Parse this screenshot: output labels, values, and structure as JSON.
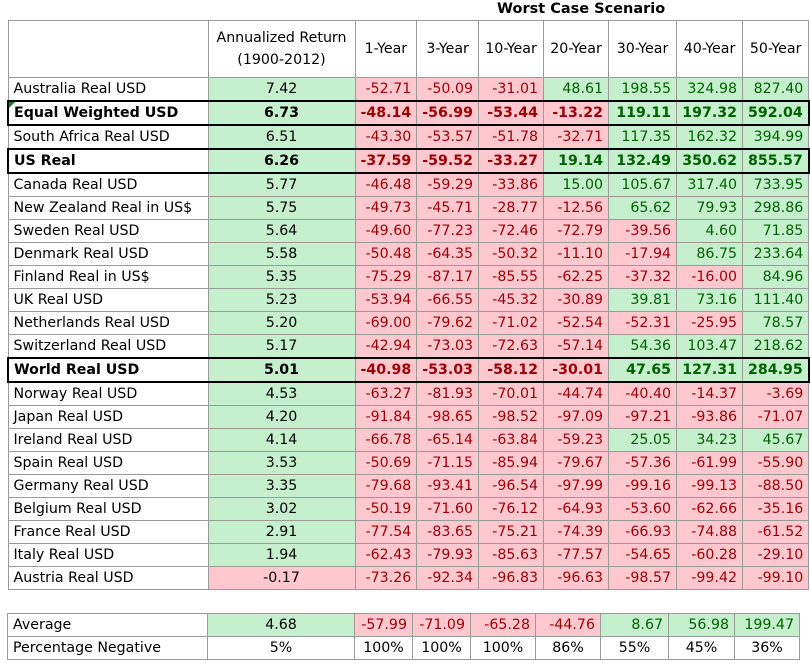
{
  "title": "Worst Case Scenario",
  "headers": {
    "name": "",
    "return_line1": "Annualized Return",
    "return_line2": "(1900-2012)",
    "periods": [
      "1-Year",
      "3-Year",
      "10-Year",
      "20-Year",
      "30-Year",
      "40-Year",
      "50-Year"
    ]
  },
  "colors": {
    "positive_fill": "#c6efce",
    "positive_text": "#006100",
    "negative_fill": "#ffc7ce",
    "negative_text": "#9c0006"
  },
  "rows": [
    {
      "name": "Australia Real USD",
      "ret": "7.42",
      "vals": [
        "-52.71",
        "-50.09",
        "-31.01",
        "48.61",
        "198.55",
        "324.98",
        "827.40"
      ],
      "bold": false
    },
    {
      "name": "Equal Weighted USD",
      "ret": "6.73",
      "vals": [
        "-48.14",
        "-56.99",
        "-53.44",
        "-13.22",
        "119.11",
        "197.32",
        "592.04"
      ],
      "bold": true
    },
    {
      "name": "South Africa Real USD",
      "ret": "6.51",
      "vals": [
        "-43.30",
        "-53.57",
        "-51.78",
        "-32.71",
        "117.35",
        "162.32",
        "394.99"
      ],
      "bold": false
    },
    {
      "name": "US Real",
      "ret": "6.26",
      "vals": [
        "-37.59",
        "-59.52",
        "-33.27",
        "19.14",
        "132.49",
        "350.62",
        "855.57"
      ],
      "bold": true
    },
    {
      "name": "Canada Real USD",
      "ret": "5.77",
      "vals": [
        "-46.48",
        "-59.29",
        "-33.86",
        "15.00",
        "105.67",
        "317.40",
        "733.95"
      ],
      "bold": false
    },
    {
      "name": "New Zealand Real in US$",
      "ret": "5.75",
      "vals": [
        "-49.73",
        "-45.71",
        "-28.77",
        "-12.56",
        "65.62",
        "79.93",
        "298.86"
      ],
      "bold": false
    },
    {
      "name": "Sweden Real USD",
      "ret": "5.64",
      "vals": [
        "-49.60",
        "-77.23",
        "-72.46",
        "-72.79",
        "-39.56",
        "4.60",
        "71.85"
      ],
      "bold": false
    },
    {
      "name": "Denmark Real USD",
      "ret": "5.58",
      "vals": [
        "-50.48",
        "-64.35",
        "-50.32",
        "-11.10",
        "-17.94",
        "86.75",
        "233.64"
      ],
      "bold": false
    },
    {
      "name": "Finland Real in US$",
      "ret": "5.35",
      "vals": [
        "-75.29",
        "-87.17",
        "-85.55",
        "-62.25",
        "-37.32",
        "-16.00",
        "84.96"
      ],
      "bold": false
    },
    {
      "name": "UK Real USD",
      "ret": "5.23",
      "vals": [
        "-53.94",
        "-66.55",
        "-45.32",
        "-30.89",
        "39.81",
        "73.16",
        "111.40"
      ],
      "bold": false
    },
    {
      "name": "Netherlands Real USD",
      "ret": "5.20",
      "vals": [
        "-69.00",
        "-79.62",
        "-71.02",
        "-52.54",
        "-52.31",
        "-25.95",
        "78.57"
      ],
      "bold": false
    },
    {
      "name": "Switzerland Real USD",
      "ret": "5.17",
      "vals": [
        "-42.94",
        "-73.03",
        "-72.63",
        "-57.14",
        "54.36",
        "103.47",
        "218.62"
      ],
      "bold": false
    },
    {
      "name": "World Real USD",
      "ret": "5.01",
      "vals": [
        "-40.98",
        "-53.03",
        "-58.12",
        "-30.01",
        "47.65",
        "127.31",
        "284.95"
      ],
      "bold": true
    },
    {
      "name": "Norway Real USD",
      "ret": "4.53",
      "vals": [
        "-63.27",
        "-81.93",
        "-70.01",
        "-44.74",
        "-40.40",
        "-14.37",
        "-3.69"
      ],
      "bold": false
    },
    {
      "name": "Japan Real USD",
      "ret": "4.20",
      "vals": [
        "-91.84",
        "-98.65",
        "-98.52",
        "-97.09",
        "-97.21",
        "-93.86",
        "-71.07"
      ],
      "bold": false
    },
    {
      "name": "Ireland Real USD",
      "ret": "4.14",
      "vals": [
        "-66.78",
        "-65.14",
        "-63.84",
        "-59.23",
        "25.05",
        "34.23",
        "45.67"
      ],
      "bold": false
    },
    {
      "name": "Spain Real USD",
      "ret": "3.53",
      "vals": [
        "-50.69",
        "-71.15",
        "-85.94",
        "-79.67",
        "-57.36",
        "-61.99",
        "-55.90"
      ],
      "bold": false
    },
    {
      "name": "Germany Real USD",
      "ret": "3.35",
      "vals": [
        "-79.68",
        "-93.41",
        "-96.54",
        "-97.99",
        "-99.16",
        "-99.13",
        "-88.50"
      ],
      "bold": false
    },
    {
      "name": "Belgium Real USD",
      "ret": "3.02",
      "vals": [
        "-50.19",
        "-71.60",
        "-76.12",
        "-64.93",
        "-53.60",
        "-62.66",
        "-35.16"
      ],
      "bold": false
    },
    {
      "name": "France Real USD",
      "ret": "2.91",
      "vals": [
        "-77.54",
        "-83.65",
        "-75.21",
        "-74.39",
        "-66.93",
        "-74.88",
        "-61.52"
      ],
      "bold": false
    },
    {
      "name": "Italy Real USD",
      "ret": "1.94",
      "vals": [
        "-62.43",
        "-79.93",
        "-85.63",
        "-77.57",
        "-54.65",
        "-60.28",
        "-29.10"
      ],
      "bold": false
    },
    {
      "name": "Austria Real USD",
      "ret": "-0.17",
      "vals": [
        "-73.26",
        "-92.34",
        "-96.83",
        "-96.63",
        "-98.57",
        "-99.42",
        "-99.10"
      ],
      "bold": false
    }
  ],
  "summary": {
    "average": {
      "name": "Average",
      "ret": "4.68",
      "vals": [
        "-57.99",
        "-71.09",
        "-65.28",
        "-44.76",
        "8.67",
        "56.98",
        "199.47"
      ]
    },
    "pct_negative": {
      "name": "Percentage Negative",
      "ret": "5%",
      "vals": [
        "100%",
        "100%",
        "100%",
        "86%",
        "55%",
        "45%",
        "36%"
      ]
    }
  }
}
